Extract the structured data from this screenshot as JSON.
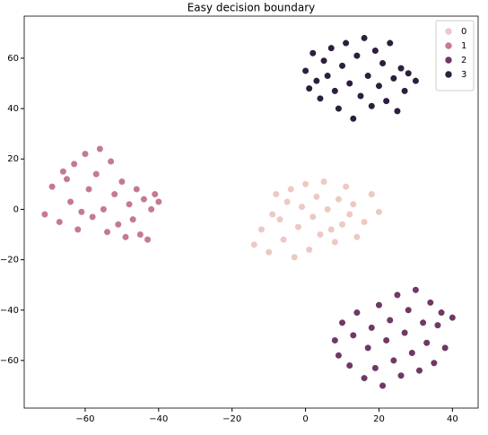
{
  "chart_data": {
    "type": "scatter",
    "title": "Easy decision boundary",
    "xlim": [
      -76.6,
      47
    ],
    "ylim": [
      -78.9,
      76.7
    ],
    "xticks": [
      {
        "value": -60,
        "label": "−60"
      },
      {
        "value": -40,
        "label": "−40"
      },
      {
        "value": -20,
        "label": "−20"
      },
      0,
      20,
      40
    ],
    "yticks": [
      {
        "value": -60,
        "label": "−60"
      },
      {
        "value": -40,
        "label": "−40"
      },
      {
        "value": -20,
        "label": "−20"
      },
      0,
      20,
      40,
      60
    ],
    "legend": "upper right",
    "series": [
      {
        "name": "0",
        "color": "#ecc9c3",
        "x": [
          -14,
          -12,
          -10,
          -9,
          -8,
          -6,
          -5,
          -4,
          -3,
          -2,
          -1,
          0,
          1,
          2,
          3,
          4,
          5,
          6,
          8,
          9,
          10,
          11,
          12,
          13,
          14,
          16,
          18,
          20,
          -7,
          7
        ],
        "y": [
          -14,
          -8,
          -17,
          -2,
          6,
          -12,
          3,
          8,
          -19,
          -7,
          1,
          10,
          -16,
          -3,
          5,
          -10,
          11,
          0,
          -13,
          4,
          -6,
          9,
          -2,
          2,
          -11,
          -5,
          6,
          -1,
          -4,
          -8
        ]
      },
      {
        "name": "1",
        "color": "#c47a92",
        "x": [
          -71,
          -69,
          -67,
          -66,
          -64,
          -63,
          -62,
          -60,
          -59,
          -58,
          -57,
          -56,
          -55,
          -54,
          -53,
          -52,
          -51,
          -50,
          -49,
          -48,
          -47,
          -46,
          -45,
          -44,
          -43,
          -42,
          -41,
          -40,
          -61,
          -65
        ],
        "y": [
          -2,
          9,
          -5,
          15,
          3,
          18,
          -8,
          22,
          8,
          -3,
          14,
          24,
          0,
          -9,
          19,
          6,
          -6,
          11,
          -11,
          2,
          -4,
          8,
          -10,
          4,
          -12,
          0,
          6,
          3,
          -1,
          12
        ]
      },
      {
        "name": "2",
        "color": "#6f3866",
        "x": [
          8,
          9,
          10,
          12,
          13,
          14,
          16,
          17,
          18,
          19,
          20,
          21,
          22,
          23,
          24,
          25,
          26,
          27,
          28,
          29,
          30,
          31,
          32,
          33,
          34,
          35,
          36,
          37,
          38,
          40
        ],
        "y": [
          -52,
          -58,
          -45,
          -62,
          -50,
          -41,
          -67,
          -55,
          -47,
          -63,
          -38,
          -70,
          -52,
          -44,
          -60,
          -34,
          -66,
          -49,
          -40,
          -57,
          -32,
          -64,
          -45,
          -53,
          -37,
          -61,
          -46,
          -41,
          -55,
          -43
        ]
      },
      {
        "name": "3",
        "color": "#2d1e3e",
        "x": [
          0,
          1,
          2,
          3,
          4,
          5,
          6,
          7,
          8,
          9,
          10,
          11,
          12,
          13,
          14,
          15,
          16,
          17,
          18,
          19,
          20,
          21,
          22,
          23,
          24,
          25,
          26,
          27,
          28,
          30
        ],
        "y": [
          55,
          48,
          62,
          51,
          44,
          59,
          53,
          64,
          47,
          40,
          57,
          66,
          50,
          36,
          61,
          45,
          68,
          53,
          41,
          63,
          49,
          58,
          43,
          66,
          52,
          39,
          56,
          47,
          54,
          51
        ]
      }
    ]
  }
}
